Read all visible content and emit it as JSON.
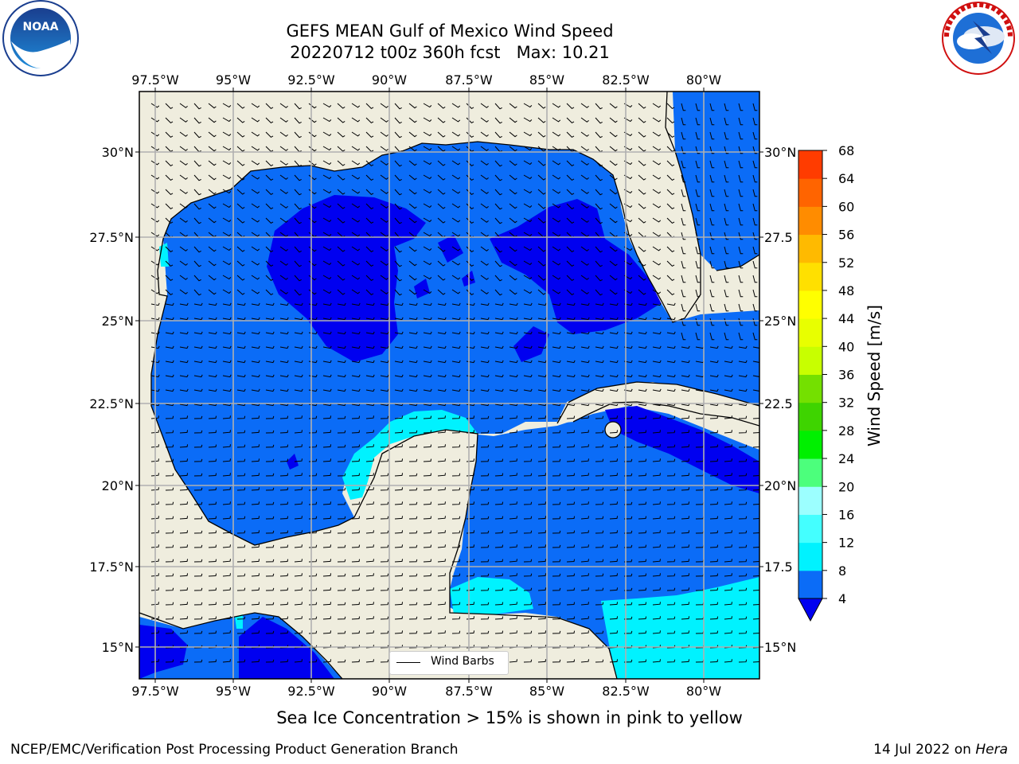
{
  "title": {
    "line1": "GEFS MEAN Gulf of Mexico Wind Speed",
    "line2": "20220712 t00z 360h fcst   Max: 10.21"
  },
  "logos": {
    "left_text": "NOAA",
    "right_text": "NATIONAL WEATHER SERVICE"
  },
  "map": {
    "lon_ticks": [
      "97.5°W",
      "95°W",
      "92.5°W",
      "90°W",
      "87.5°W",
      "85°W",
      "82.5°W",
      "80°W"
    ],
    "lat_ticks": [
      "30°N",
      "27.5°N",
      "25°N",
      "22.5°N",
      "20°N",
      "17.5°N",
      "15°N"
    ],
    "right_lat_ticks": [
      "30°N",
      "27.5",
      "25°N",
      "22.5",
      "20°N",
      "17.5",
      "15°N"
    ],
    "land_color": "#efedde",
    "grid_color": "#b0b0b0",
    "legend_label": "Wind Barbs"
  },
  "colorbar": {
    "label": "Wind Speed [m/s]",
    "ticks": [
      "4",
      "8",
      "12",
      "16",
      "20",
      "24",
      "28",
      "32",
      "36",
      "40",
      "44",
      "48",
      "52",
      "56",
      "60",
      "64",
      "68"
    ],
    "colors": [
      "#0b6cf7",
      "#00f2ff",
      "#44ffff",
      "#9cffff",
      "#4cff7c",
      "#00f000",
      "#3ed400",
      "#74e000",
      "#c8ff00",
      "#e8ff00",
      "#ffff00",
      "#ffe000",
      "#ffba00",
      "#ff8c00",
      "#ff6400",
      "#ff3c00"
    ],
    "under_color": "#0000f0"
  },
  "bottom_note": "Sea Ice Concentration > 15% is shown in pink to yellow",
  "footer": {
    "left": "NCEP/EMC/Verification Post Processing Product Generation Branch",
    "right_date": "14 Jul 2022 on ",
    "right_host": "Hera"
  }
}
